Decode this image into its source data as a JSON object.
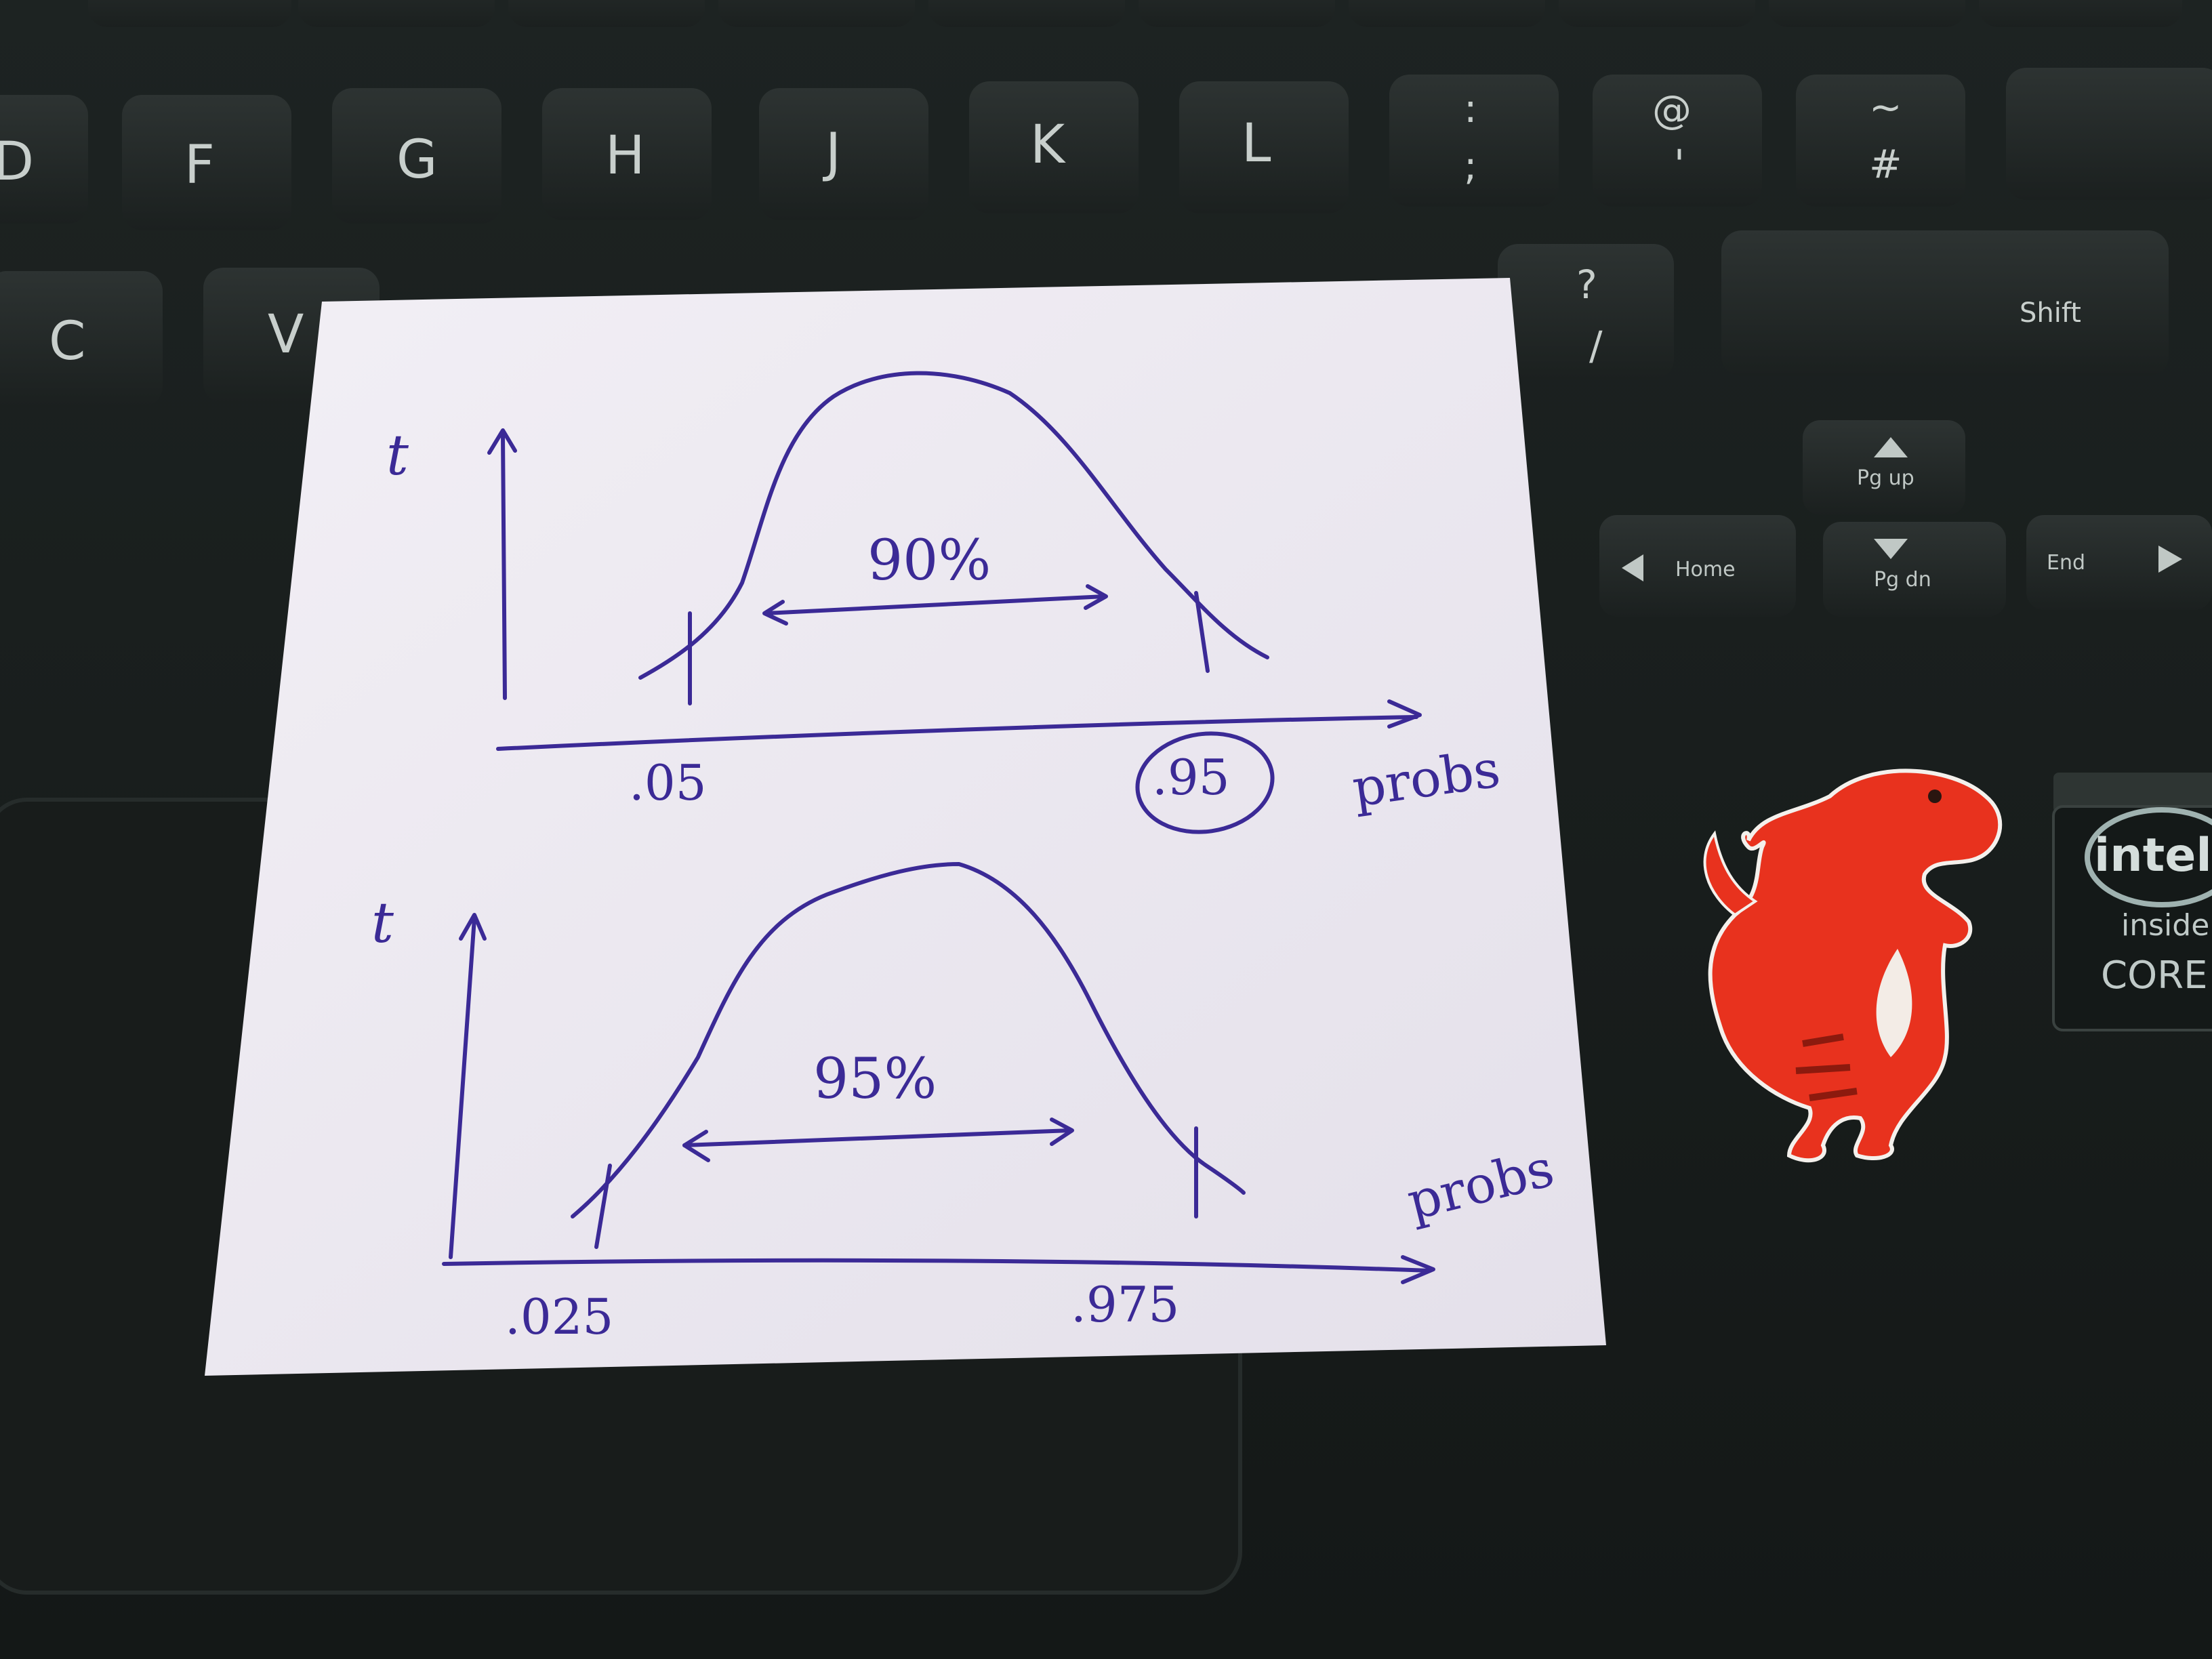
{
  "keyboard": {
    "keys_row1": [
      "D",
      "F",
      "G",
      "H",
      "J",
      "K",
      "L",
      ":",
      "@",
      "~"
    ],
    "keys_row1_sub": [
      ";",
      "'",
      "#"
    ],
    "keys_row2": [
      "C",
      "V"
    ],
    "shift_label": "Shift",
    "question_key": "?",
    "slash_key": "/",
    "pg_up": "Pg up",
    "pg_dn": "Pg dn",
    "home": "Home",
    "end": "End"
  },
  "sticker": {
    "intel_brand": "intel",
    "intel_inside": "inside",
    "core": "CORE"
  },
  "note": {
    "top_plot": {
      "y_label": "t",
      "x_label": "probs",
      "left_tick": ".05",
      "right_tick": ".95",
      "interval_label": "90%"
    },
    "bottom_plot": {
      "y_label": "t",
      "x_label": "probs",
      "left_tick": ".025",
      "right_tick": ".975",
      "interval_label": "95%"
    }
  },
  "colors": {
    "ink": "#3b2a96",
    "paper": "#eae6ef",
    "laptop": "#1a1f1e",
    "dino": "#e8321e"
  }
}
